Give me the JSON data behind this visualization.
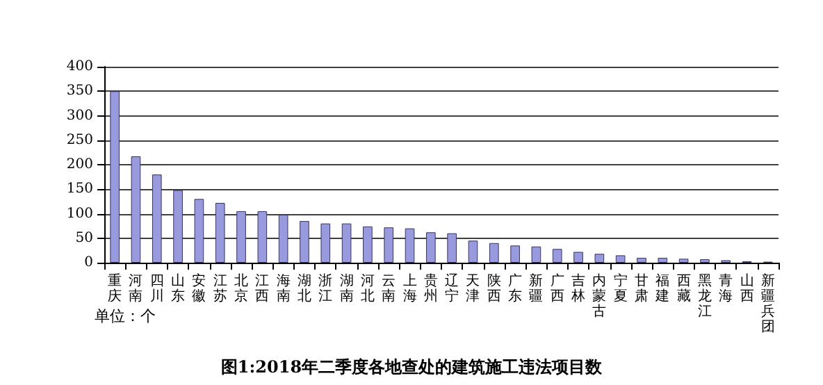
{
  "chart_data": {
    "type": "bar",
    "title": "图1:2018年二季度各地查处的建筑施工违法项目数",
    "annotations": [
      "单位：个"
    ],
    "categories": [
      "重庆",
      "河南",
      "四川",
      "山东",
      "安徽",
      "江苏",
      "北京",
      "江西",
      "海南",
      "湖北",
      "浙江",
      "湖南",
      "河北",
      "云南",
      "上海",
      "贵州",
      "辽宁",
      "天津",
      "陕西",
      "广东",
      "新疆",
      "广西",
      "吉林",
      "内蒙古",
      "宁夏",
      "甘肃",
      "福建",
      "西藏",
      "黑龙江",
      "青海",
      "山西",
      "新疆兵团"
    ],
    "values": [
      350,
      217,
      180,
      148,
      130,
      122,
      105,
      105,
      98,
      85,
      80,
      80,
      74,
      72,
      70,
      62,
      60,
      45,
      40,
      35,
      33,
      28,
      22,
      18,
      15,
      10,
      10,
      8,
      7,
      5,
      3,
      2
    ],
    "color": "#9999dd",
    "ylim": [
      0,
      400
    ],
    "yticks": [
      0,
      50,
      100,
      150,
      200,
      250,
      300,
      350,
      400
    ],
    "grid": "y"
  }
}
